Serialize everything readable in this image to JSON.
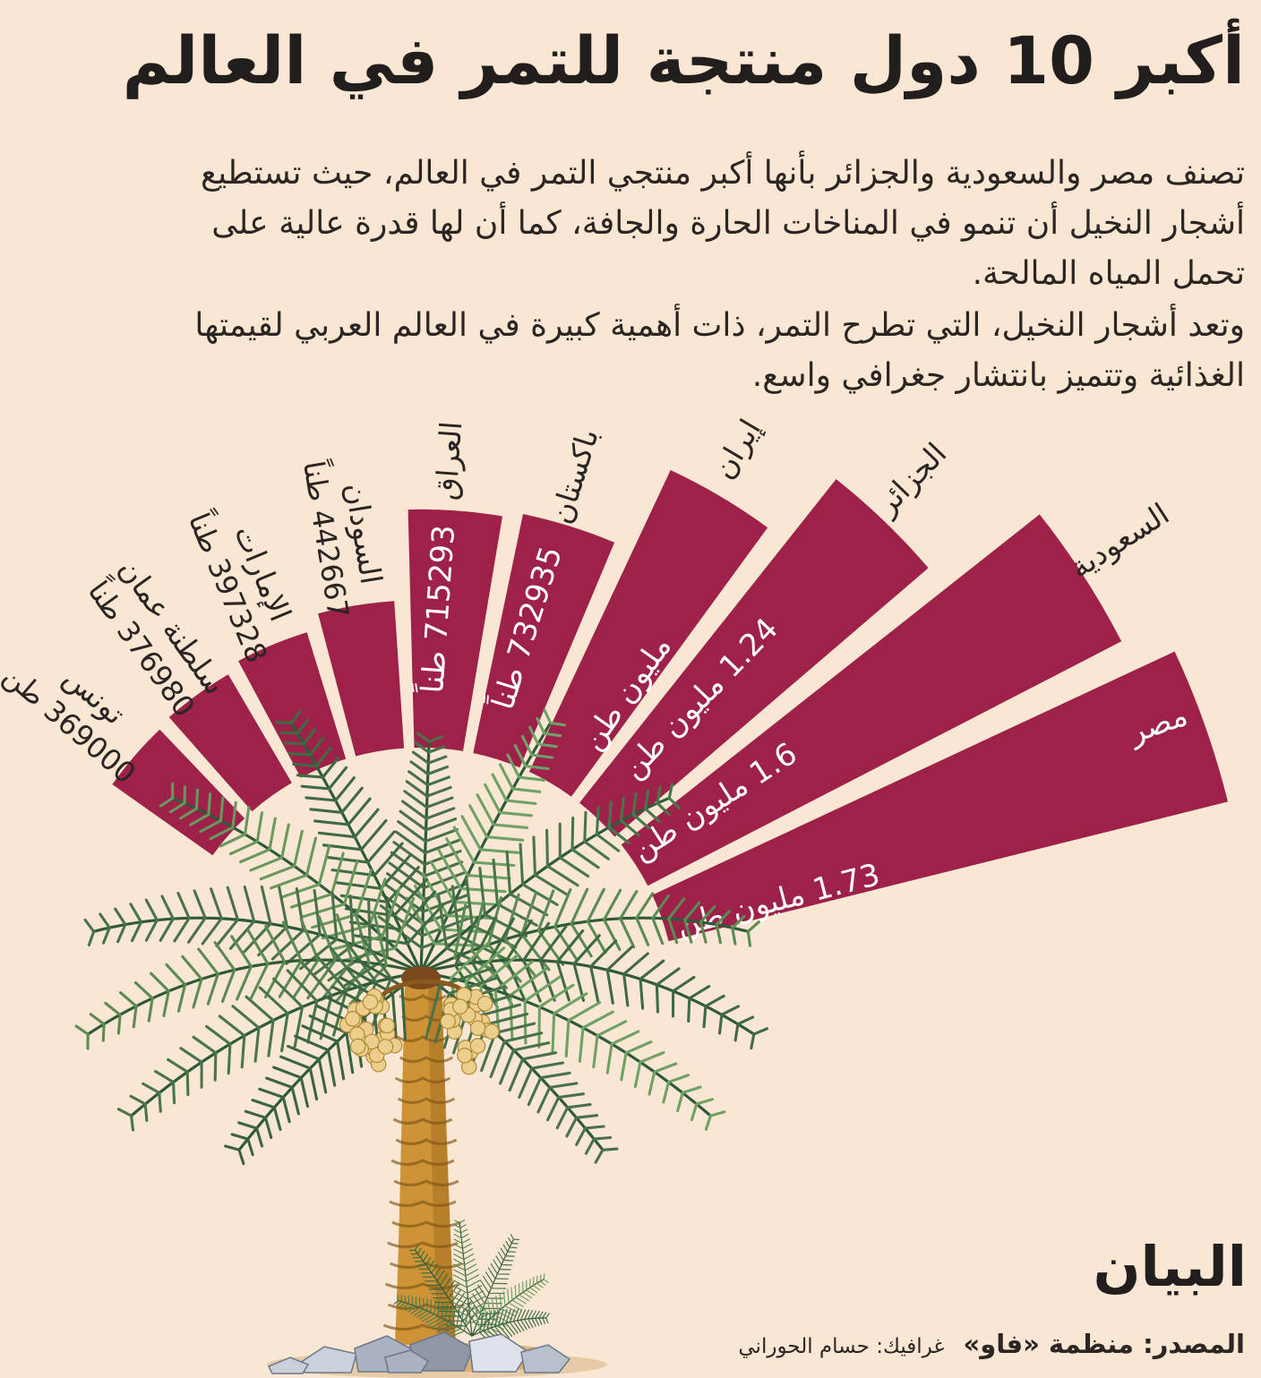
{
  "title": "أكبر 10 دول منتجة للتمر في العالم",
  "intro": {
    "paragraph1": "تصنف مصر والسعودية والجزائر بأنها أكبر منتجي التمر في العالم، حيث تستطيع أشجار النخيل أن تنمو في المناخات الحارة والجافة، كما أن لها قدرة عالية على تحمل المياه المالحة.",
    "paragraph2": "وتعد أشجار النخيل، التي تطرح التمر، ذات أهمية كبيرة في العالم العربي لقيمتها الغذائية وتتميز بانتشار جغرافي واسع."
  },
  "chart_data": {
    "type": "radial-fan-bar",
    "title": "أكبر 10 دول منتجة للتمر في العالم",
    "unit": "طن",
    "value_axis_max_tons": 1730000,
    "legend_position": "none",
    "grid": false,
    "series": [
      {
        "key": "egypt",
        "country": "مصر",
        "tons": 1730000,
        "value_label": "1.73 مليون طن",
        "value_position": "inside",
        "country_position": "inside"
      },
      {
        "key": "saudi-arabia",
        "country": "السعودية",
        "tons": 1600000,
        "value_label": "1.6 مليون طن",
        "value_position": "inside",
        "country_position": "outside"
      },
      {
        "key": "algeria",
        "country": "الجزائر",
        "tons": 1240000,
        "value_label": "1.24 مليون طن",
        "value_position": "inside",
        "country_position": "outside"
      },
      {
        "key": "iran",
        "country": "إيران",
        "tons": 1000000,
        "value_label": "مليون طن",
        "value_position": "inside",
        "country_position": "outside"
      },
      {
        "key": "pakistan",
        "country": "باكستان",
        "tons": 732935,
        "value_label": "732935 طناً",
        "value_position": "inside",
        "country_position": "outside"
      },
      {
        "key": "iraq",
        "country": "العراق",
        "tons": 715293,
        "value_label": "715293 طناً",
        "value_position": "inside",
        "country_position": "outside"
      },
      {
        "key": "sudan",
        "country": "السودان",
        "tons": 442667,
        "value_label": "442667 طناً",
        "value_position": "outside",
        "country_position": "outside"
      },
      {
        "key": "uae",
        "country": "الإمارات",
        "tons": 397328,
        "value_label": "397328 طناً",
        "value_position": "outside",
        "country_position": "outside"
      },
      {
        "key": "oman",
        "country": "سلطنة عمان",
        "tons": 376980,
        "value_label": "376980 طناً",
        "value_position": "outside",
        "country_position": "outside"
      },
      {
        "key": "tunisia",
        "country": "تونس",
        "tons": 369000,
        "value_label": "369000 طن",
        "value_position": "outside",
        "country_position": "outside"
      }
    ],
    "colors": {
      "petal": "#9D2148",
      "background": "#FAE7D3",
      "ink": "#2A2422",
      "inside_text": "#FFFFFF"
    }
  },
  "footer": {
    "logo": "البيان",
    "source_label": "المصدر: منظمة «فاو»",
    "credit": "غرافيك: حسام الحوراني"
  }
}
